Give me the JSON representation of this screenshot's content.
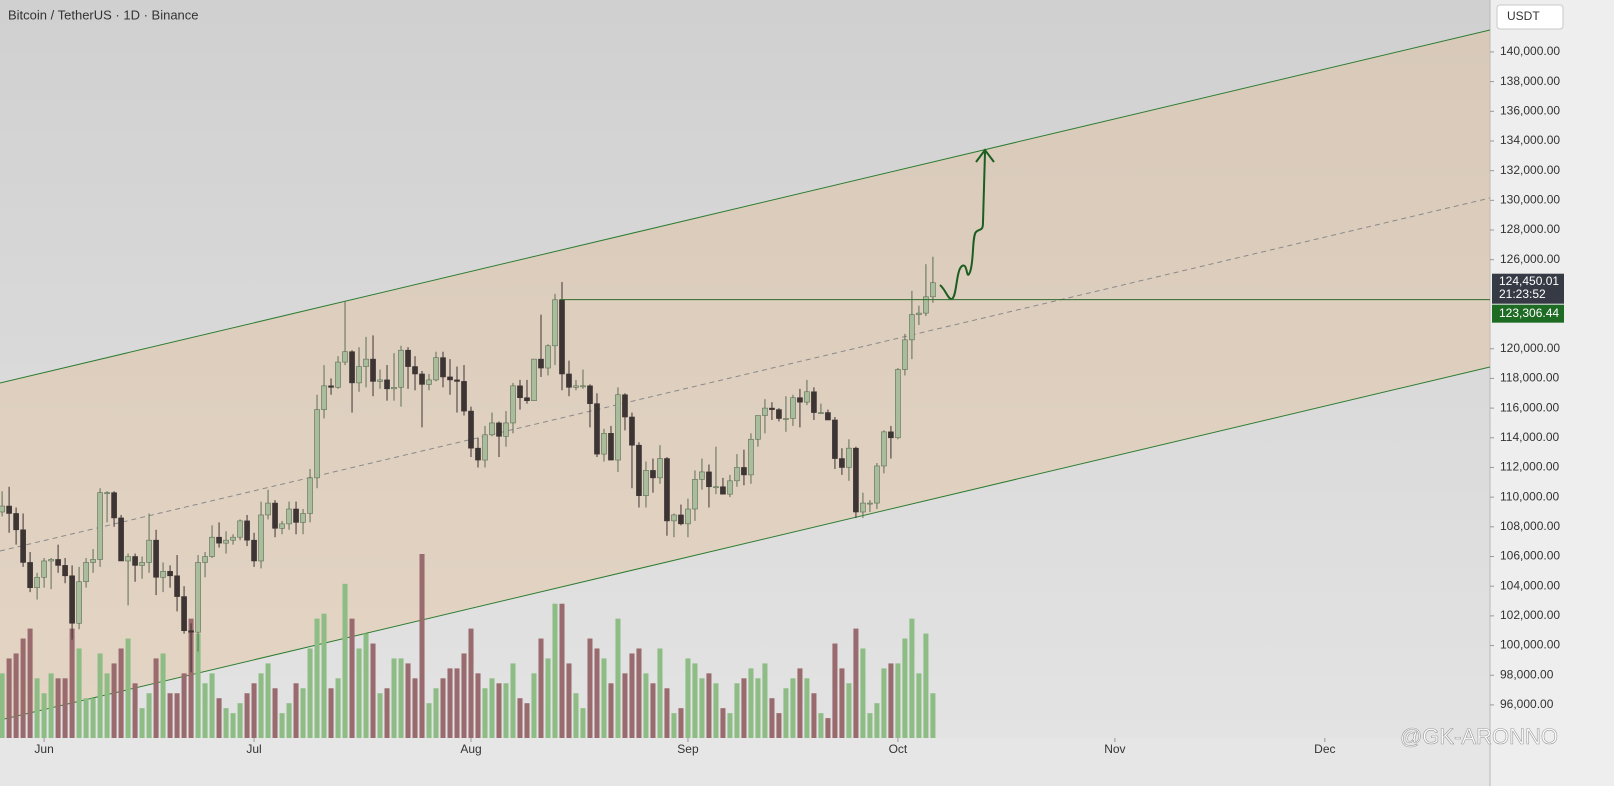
{
  "chart_data": {
    "type": "candlestick",
    "title": "Bitcoin / TetherUS · 1D · Binance",
    "currency": "USDT",
    "watermark": "@GK-ARONNO",
    "up_color": "#a9bd9c",
    "down_color": "#3d3434",
    "volume_up_color": "#8dbd85",
    "volume_down_color": "#9a6b6e",
    "grid": false,
    "xlim": [
      -0.3,
      212.6
    ],
    "xticks": [
      {
        "value": 6,
        "label": "Jun"
      },
      {
        "value": 36,
        "label": "Jul"
      },
      {
        "value": 67,
        "label": "Aug"
      },
      {
        "value": 98,
        "label": "Sep"
      },
      {
        "value": 128,
        "label": "Oct"
      },
      {
        "value": 159,
        "label": "Nov"
      },
      {
        "value": 189,
        "label": "Dec"
      }
    ],
    "ylim": [
      93770,
      143500
    ],
    "yticks": [
      {
        "value": 96000,
        "label": "96,000.00"
      },
      {
        "value": 98000,
        "label": "98,000.00"
      },
      {
        "value": 100000,
        "label": "100,000.00"
      },
      {
        "value": 102000,
        "label": "102,000.00"
      },
      {
        "value": 104000,
        "label": "104,000.00"
      },
      {
        "value": 106000,
        "label": "106,000.00"
      },
      {
        "value": 108000,
        "label": "108,000.00"
      },
      {
        "value": 110000,
        "label": "110,000.00"
      },
      {
        "value": 112000,
        "label": "112,000.00"
      },
      {
        "value": 114000,
        "label": "114,000.00"
      },
      {
        "value": 116000,
        "label": "116,000.00"
      },
      {
        "value": 118000,
        "label": "118,000.00"
      },
      {
        "value": 120000,
        "label": "120,000.00"
      },
      {
        "value": 126000,
        "label": "126,000.00"
      },
      {
        "value": 128000,
        "label": "128,000.00"
      },
      {
        "value": 130000,
        "label": "130,000.00"
      },
      {
        "value": 132000,
        "label": "132,000.00"
      },
      {
        "value": 134000,
        "label": "134,000.00"
      },
      {
        "value": 136000,
        "label": "136,000.00"
      },
      {
        "value": 138000,
        "label": "138,000.00"
      },
      {
        "value": 140000,
        "label": "140,000.00"
      }
    ],
    "last_price": {
      "value": 124450.01,
      "label": "124,450.01"
    },
    "countdown": "21:23:52",
    "level": {
      "value": 123306.44,
      "label": "123,306.44"
    },
    "ohlc": [
      [
        109000,
        110400,
        108700,
        109400
      ],
      [
        109400,
        110700,
        107600,
        108900
      ],
      [
        108900,
        109300,
        106800,
        107800
      ],
      [
        107800,
        108900,
        105300,
        105600
      ],
      [
        105600,
        106300,
        103600,
        103900
      ],
      [
        103900,
        104900,
        103100,
        104600
      ],
      [
        104600,
        105900,
        103900,
        105700
      ],
      [
        105700,
        105900,
        103800,
        105800
      ],
      [
        105800,
        106800,
        104900,
        105400
      ],
      [
        105400,
        105900,
        104200,
        104700
      ],
      [
        104700,
        105400,
        100400,
        101500
      ],
      [
        101500,
        105300,
        101100,
        104300
      ],
      [
        104300,
        105900,
        103900,
        105600
      ],
      [
        105600,
        106500,
        104900,
        105800
      ],
      [
        105800,
        110600,
        105300,
        110300
      ],
      [
        110300,
        110400,
        108300,
        110300
      ],
      [
        110300,
        110400,
        108000,
        108600
      ],
      [
        108600,
        108800,
        105700,
        105700
      ],
      [
        105700,
        106200,
        102700,
        106000
      ],
      [
        106000,
        106200,
        104300,
        105400
      ],
      [
        105400,
        106000,
        104500,
        105600
      ],
      [
        105600,
        108900,
        104900,
        107100
      ],
      [
        107100,
        107800,
        103400,
        104600
      ],
      [
        104600,
        105600,
        103600,
        105000
      ],
      [
        105000,
        105400,
        103900,
        104700
      ],
      [
        104700,
        106100,
        102300,
        103300
      ],
      [
        103300,
        104000,
        100800,
        101000
      ],
      [
        101000,
        101500,
        98200,
        100900
      ],
      [
        100900,
        106100,
        99600,
        105600
      ],
      [
        105600,
        106300,
        104600,
        106000
      ],
      [
        106000,
        108100,
        105900,
        107300
      ],
      [
        107300,
        108300,
        106600,
        106900
      ],
      [
        106900,
        107700,
        106200,
        107100
      ],
      [
        107100,
        107500,
        106800,
        107300
      ],
      [
        107300,
        108500,
        107100,
        108400
      ],
      [
        108400,
        108800,
        106700,
        107100
      ],
      [
        107100,
        107600,
        105300,
        105700
      ],
      [
        105700,
        109700,
        105200,
        108800
      ],
      [
        108800,
        110500,
        108500,
        109600
      ],
      [
        109600,
        109800,
        107300,
        107900
      ],
      [
        107900,
        108400,
        107500,
        108200
      ],
      [
        108200,
        109700,
        107800,
        109200
      ],
      [
        109200,
        109700,
        107500,
        108300
      ],
      [
        108300,
        109200,
        107500,
        108900
      ],
      [
        108900,
        111900,
        108300,
        111300
      ],
      [
        111300,
        116900,
        110600,
        115900
      ],
      [
        115900,
        118900,
        115300,
        117500
      ],
      [
        117500,
        118000,
        116900,
        117400
      ],
      [
        117400,
        119500,
        117300,
        119100
      ],
      [
        119100,
        123200,
        118900,
        119800
      ],
      [
        119800,
        119900,
        115700,
        117700
      ],
      [
        117700,
        120100,
        117100,
        118800
      ],
      [
        118800,
        120800,
        117400,
        119300
      ],
      [
        119300,
        120900,
        116800,
        117800
      ],
      [
        117800,
        118600,
        117300,
        117900
      ],
      [
        117900,
        118900,
        116500,
        117300
      ],
      [
        117300,
        119700,
        116500,
        117400
      ],
      [
        117400,
        120200,
        116100,
        119900
      ],
      [
        119900,
        120100,
        117300,
        118800
      ],
      [
        118800,
        119500,
        117200,
        118300
      ],
      [
        118300,
        118500,
        114700,
        117600
      ],
      [
        117600,
        118300,
        117200,
        117900
      ],
      [
        117900,
        119800,
        117800,
        119400
      ],
      [
        119400,
        119800,
        117400,
        118100
      ],
      [
        118100,
        119300,
        116900,
        117900
      ],
      [
        117900,
        118800,
        115700,
        117800
      ],
      [
        117800,
        118900,
        115500,
        115800
      ],
      [
        115800,
        116100,
        112700,
        113300
      ],
      [
        113300,
        114000,
        112000,
        112500
      ],
      [
        112500,
        114800,
        112000,
        114200
      ],
      [
        114200,
        115700,
        114100,
        115000
      ],
      [
        115000,
        115100,
        112700,
        114100
      ],
      [
        114100,
        115800,
        113400,
        115000
      ],
      [
        115000,
        117700,
        114300,
        117500
      ],
      [
        117500,
        117900,
        115900,
        116700
      ],
      [
        116700,
        117900,
        116300,
        116500
      ],
      [
        116500,
        119300,
        116500,
        119300
      ],
      [
        119300,
        122300,
        118100,
        118700
      ],
      [
        118700,
        120300,
        118200,
        120200
      ],
      [
        120200,
        123700,
        118900,
        123300
      ],
      [
        123300,
        124500,
        117200,
        118300
      ],
      [
        118300,
        119200,
        116800,
        117400
      ],
      [
        117400,
        117900,
        117200,
        117500
      ],
      [
        117500,
        118600,
        117300,
        117500
      ],
      [
        117500,
        117600,
        114700,
        116300
      ],
      [
        116300,
        117000,
        112700,
        112900
      ],
      [
        112900,
        114600,
        112400,
        114300
      ],
      [
        114300,
        114800,
        112600,
        112500
      ],
      [
        112500,
        117400,
        111700,
        116900
      ],
      [
        116900,
        117000,
        114500,
        115400
      ],
      [
        115400,
        115700,
        110600,
        113500
      ],
      [
        113500,
        113700,
        109300,
        110100
      ],
      [
        110100,
        112400,
        109300,
        111800
      ],
      [
        111800,
        112600,
        110300,
        111300
      ],
      [
        111300,
        113500,
        110900,
        112600
      ],
      [
        112600,
        112700,
        107400,
        108400
      ],
      [
        108400,
        108900,
        107300,
        108800
      ],
      [
        108800,
        109500,
        108100,
        108200
      ],
      [
        108200,
        109900,
        107300,
        109200
      ],
      [
        109200,
        111800,
        108400,
        111200
      ],
      [
        111200,
        112600,
        110500,
        111700
      ],
      [
        111700,
        112200,
        109300,
        110700
      ],
      [
        110700,
        113400,
        110200,
        110700
      ],
      [
        110700,
        111300,
        110200,
        110200
      ],
      [
        110200,
        111500,
        110000,
        111100
      ],
      [
        111100,
        112900,
        110700,
        112000
      ],
      [
        112000,
        113200,
        110800,
        111500
      ],
      [
        111500,
        114300,
        110900,
        113900
      ],
      [
        113900,
        115500,
        113400,
        115500
      ],
      [
        115500,
        116600,
        114300,
        116000
      ],
      [
        116000,
        116400,
        115200,
        115900
      ],
      [
        115900,
        116000,
        115100,
        115300
      ],
      [
        115300,
        116800,
        114400,
        115300
      ],
      [
        115300,
        116900,
        114800,
        116700
      ],
      [
        116700,
        117300,
        114700,
        116400
      ],
      [
        116400,
        117900,
        116200,
        117100
      ],
      [
        117100,
        117400,
        115200,
        115700
      ],
      [
        115700,
        116300,
        115600,
        115700
      ],
      [
        115700,
        115900,
        115300,
        115200
      ],
      [
        115200,
        115400,
        111900,
        112600
      ],
      [
        112600,
        113300,
        111500,
        112000
      ],
      [
        112000,
        113900,
        111100,
        113300
      ],
      [
        113300,
        113400,
        108600,
        109000
      ],
      [
        109000,
        110300,
        108600,
        109600
      ],
      [
        109600,
        109800,
        109000,
        109600
      ],
      [
        109600,
        112300,
        109200,
        112100
      ],
      [
        112100,
        114500,
        111600,
        114400
      ],
      [
        114400,
        114800,
        112600,
        114000
      ],
      [
        114000,
        118700,
        113900,
        118600
      ],
      [
        118600,
        121000,
        118200,
        120600
      ],
      [
        120600,
        123900,
        119300,
        122300
      ],
      [
        122300,
        122900,
        121600,
        122400
      ],
      [
        122400,
        125700,
        122200,
        123500
      ],
      [
        123500,
        126200,
        123100,
        124450.01
      ]
    ],
    "volume": [
      13000,
      16000,
      17000,
      20000,
      22000,
      12000,
      9000,
      13000,
      12000,
      12000,
      22000,
      18000,
      8000,
      8000,
      17000,
      13000,
      15000,
      18000,
      20000,
      11000,
      6000,
      9000,
      16000,
      17000,
      9000,
      9000,
      13000,
      24000,
      21000,
      11000,
      13000,
      8000,
      6000,
      5000,
      7000,
      9000,
      11000,
      13000,
      15000,
      10000,
      5000,
      7000,
      11000,
      10000,
      18000,
      24000,
      25000,
      10000,
      12000,
      31000,
      24000,
      18000,
      21000,
      19000,
      9000,
      10000,
      16000,
      16000,
      15000,
      12000,
      37000,
      7000,
      10000,
      12000,
      14000,
      14000,
      17000,
      22000,
      13000,
      10000,
      12000,
      11000,
      11000,
      15000,
      8000,
      7000,
      13000,
      20000,
      16000,
      27000,
      27000,
      15000,
      9000,
      6000,
      20000,
      18000,
      16000,
      11000,
      24000,
      13000,
      17000,
      18000,
      13000,
      11000,
      18000,
      10000,
      5000,
      6000,
      16000,
      15000,
      12000,
      13000,
      11000,
      6000,
      5000,
      11000,
      12000,
      14000,
      12000,
      15000,
      8000,
      5000,
      10000,
      12000,
      14000,
      12000,
      9000,
      5000,
      4000,
      19000,
      14000,
      11000,
      22000,
      18000,
      5000,
      7000,
      14000,
      15000,
      15000,
      20000,
      24000,
      13000,
      21000,
      9000
    ]
  }
}
